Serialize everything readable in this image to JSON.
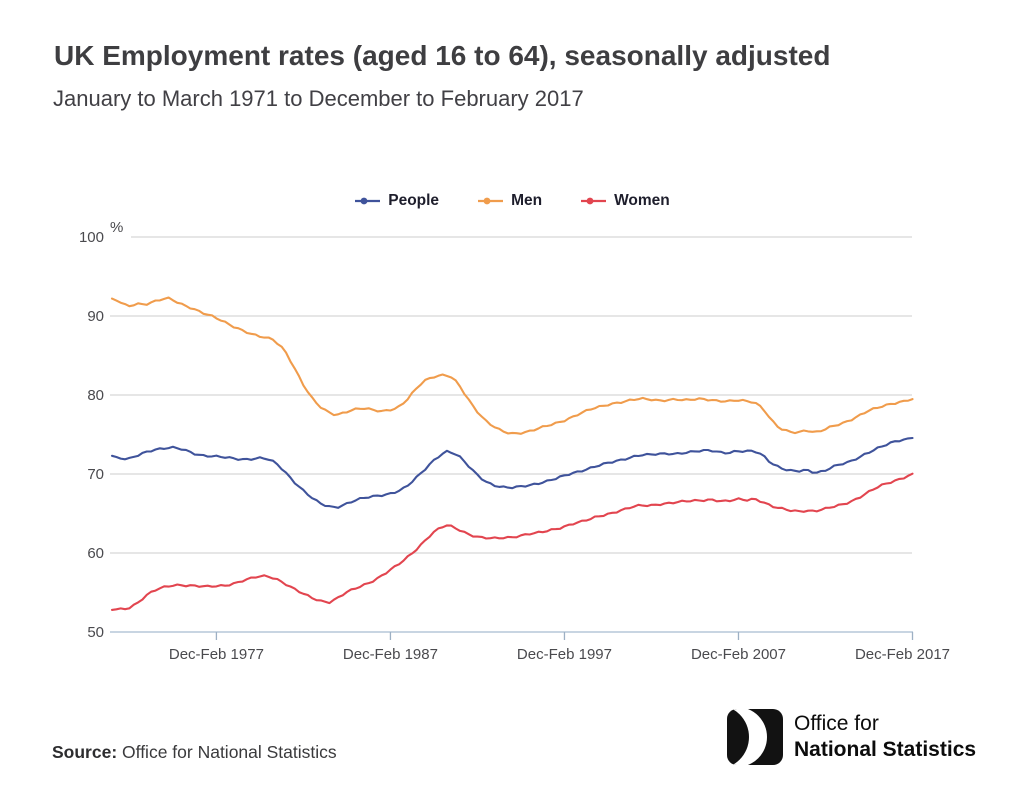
{
  "header": {
    "title": "UK Employment rates (aged 16 to 64), seasonally adjusted",
    "subtitle": "January to March 1971 to December to February 2017"
  },
  "footer": {
    "source_label": "Source:",
    "source_value": "Office for National Statistics",
    "logo_line1": "Office for",
    "logo_line2": "National Statistics"
  },
  "chart_data": {
    "type": "line",
    "unit_label": "%",
    "y_range": [
      50,
      100
    ],
    "x_range": [
      1971.1,
      2017.1
    ],
    "grid": true,
    "legend_position": "top-center",
    "y_ticks": [
      100,
      90,
      80,
      70,
      60,
      50
    ],
    "x_ticks": [
      {
        "year": 1977.1,
        "label": "Dec-Feb 1977"
      },
      {
        "year": 1987.1,
        "label": "Dec-Feb 1987"
      },
      {
        "year": 1997.1,
        "label": "Dec-Feb 1997"
      },
      {
        "year": 2007.1,
        "label": "Dec-Feb 2007"
      },
      {
        "year": 2017.1,
        "label": "Dec-Feb 2017"
      }
    ],
    "series": [
      {
        "name": "People",
        "color": "#3f539b",
        "points": [
          [
            1971.1,
            72.3
          ],
          [
            1971.5,
            72.0
          ],
          [
            1972,
            71.8
          ],
          [
            1972.5,
            72.3
          ],
          [
            1973,
            72.8
          ],
          [
            1973.5,
            73.1
          ],
          [
            1974,
            73.2
          ],
          [
            1974.5,
            73.3
          ],
          [
            1975,
            73.2
          ],
          [
            1975.5,
            72.9
          ],
          [
            1976,
            72.5
          ],
          [
            1976.5,
            72.3
          ],
          [
            1977,
            72.2
          ],
          [
            1977.5,
            72.1
          ],
          [
            1978,
            72.0
          ],
          [
            1978.5,
            71.9
          ],
          [
            1979,
            71.9
          ],
          [
            1979.5,
            72.0
          ],
          [
            1980,
            71.9
          ],
          [
            1980.5,
            71.4
          ],
          [
            1981,
            70.4
          ],
          [
            1981.5,
            69.2
          ],
          [
            1982,
            68.1
          ],
          [
            1982.5,
            67.1
          ],
          [
            1983,
            66.3
          ],
          [
            1983.5,
            65.9
          ],
          [
            1984,
            65.8
          ],
          [
            1984.5,
            66.2
          ],
          [
            1985,
            66.6
          ],
          [
            1985.5,
            66.9
          ],
          [
            1986,
            67.1
          ],
          [
            1986.5,
            67.3
          ],
          [
            1987,
            67.5
          ],
          [
            1987.5,
            67.8
          ],
          [
            1988,
            68.3
          ],
          [
            1988.5,
            69.3
          ],
          [
            1989,
            70.4
          ],
          [
            1989.5,
            71.6
          ],
          [
            1990,
            72.5
          ],
          [
            1990.4,
            72.9
          ],
          [
            1991,
            72.3
          ],
          [
            1991.5,
            71.2
          ],
          [
            1992,
            70.1
          ],
          [
            1992.5,
            69.2
          ],
          [
            1993,
            68.6
          ],
          [
            1993.5,
            68.3
          ],
          [
            1994,
            68.2
          ],
          [
            1994.5,
            68.4
          ],
          [
            1995,
            68.6
          ],
          [
            1995.5,
            68.8
          ],
          [
            1996,
            69.0
          ],
          [
            1996.5,
            69.3
          ],
          [
            1997,
            69.7
          ],
          [
            1997.5,
            70.1
          ],
          [
            1998,
            70.4
          ],
          [
            1998.5,
            70.7
          ],
          [
            1999,
            71.0
          ],
          [
            1999.5,
            71.3
          ],
          [
            2000,
            71.6
          ],
          [
            2000.5,
            71.9
          ],
          [
            2001,
            72.2
          ],
          [
            2001.5,
            72.4
          ],
          [
            2002,
            72.4
          ],
          [
            2002.5,
            72.5
          ],
          [
            2003,
            72.6
          ],
          [
            2003.5,
            72.6
          ],
          [
            2004,
            72.7
          ],
          [
            2004.5,
            72.8
          ],
          [
            2005,
            72.9
          ],
          [
            2005.5,
            73.0
          ],
          [
            2006,
            72.8
          ],
          [
            2006.5,
            72.7
          ],
          [
            2007,
            72.9
          ],
          [
            2007.5,
            72.8
          ],
          [
            2008,
            72.9
          ],
          [
            2008.5,
            72.4
          ],
          [
            2009,
            71.4
          ],
          [
            2009.5,
            70.8
          ],
          [
            2010,
            70.4
          ],
          [
            2010.5,
            70.3
          ],
          [
            2011,
            70.5
          ],
          [
            2011.5,
            70.2
          ],
          [
            2012,
            70.4
          ],
          [
            2012.5,
            70.9
          ],
          [
            2013,
            71.2
          ],
          [
            2013.5,
            71.5
          ],
          [
            2014,
            72.1
          ],
          [
            2014.5,
            72.7
          ],
          [
            2015,
            73.2
          ],
          [
            2015.5,
            73.6
          ],
          [
            2016,
            74.0
          ],
          [
            2016.5,
            74.3
          ],
          [
            2017.1,
            74.6
          ]
        ]
      },
      {
        "name": "Men",
        "color": "#f09c4c",
        "points": [
          [
            1971.1,
            92.2
          ],
          [
            1971.5,
            91.8
          ],
          [
            1972,
            91.2
          ],
          [
            1972.5,
            91.6
          ],
          [
            1973,
            91.5
          ],
          [
            1973.5,
            91.8
          ],
          [
            1974,
            92.1
          ],
          [
            1974.4,
            92.2
          ],
          [
            1975,
            91.6
          ],
          [
            1975.5,
            91.2
          ],
          [
            1976,
            90.7
          ],
          [
            1976.5,
            90.2
          ],
          [
            1977,
            89.8
          ],
          [
            1977.5,
            89.3
          ],
          [
            1978,
            88.8
          ],
          [
            1978.5,
            88.3
          ],
          [
            1979,
            87.8
          ],
          [
            1979.5,
            87.4
          ],
          [
            1980,
            87.2
          ],
          [
            1980.4,
            87.0
          ],
          [
            1981,
            85.8
          ],
          [
            1981.5,
            83.8
          ],
          [
            1982,
            81.6
          ],
          [
            1982.5,
            79.8
          ],
          [
            1983,
            78.6
          ],
          [
            1983.5,
            77.9
          ],
          [
            1984,
            77.5
          ],
          [
            1984.5,
            77.8
          ],
          [
            1985,
            78.1
          ],
          [
            1985.5,
            78.3
          ],
          [
            1986,
            78.2
          ],
          [
            1986.6,
            78.0
          ],
          [
            1987,
            78.1
          ],
          [
            1987.5,
            78.3
          ],
          [
            1988,
            79.2
          ],
          [
            1988.5,
            80.6
          ],
          [
            1989,
            81.8
          ],
          [
            1989.5,
            82.3
          ],
          [
            1990,
            82.5
          ],
          [
            1990.5,
            82.4
          ],
          [
            1991,
            81.4
          ],
          [
            1991.5,
            79.7
          ],
          [
            1992,
            78.2
          ],
          [
            1992.5,
            76.9
          ],
          [
            1993,
            76.0
          ],
          [
            1993.5,
            75.4
          ],
          [
            1994,
            75.1
          ],
          [
            1994.5,
            75.2
          ],
          [
            1995,
            75.4
          ],
          [
            1995.5,
            75.7
          ],
          [
            1996,
            76.0
          ],
          [
            1996.5,
            76.3
          ],
          [
            1997,
            76.7
          ],
          [
            1997.5,
            77.2
          ],
          [
            1998,
            77.7
          ],
          [
            1998.5,
            78.1
          ],
          [
            1999,
            78.4
          ],
          [
            1999.5,
            78.7
          ],
          [
            2000,
            79.0
          ],
          [
            2000.5,
            79.2
          ],
          [
            2001,
            79.4
          ],
          [
            2001.5,
            79.5
          ],
          [
            2002,
            79.4
          ],
          [
            2002.5,
            79.3
          ],
          [
            2003,
            79.4
          ],
          [
            2003.5,
            79.5
          ],
          [
            2004,
            79.3
          ],
          [
            2004.5,
            79.4
          ],
          [
            2005,
            79.5
          ],
          [
            2005.5,
            79.4
          ],
          [
            2006,
            79.3
          ],
          [
            2006.5,
            79.2
          ],
          [
            2007,
            79.3
          ],
          [
            2007.5,
            79.2
          ],
          [
            2008,
            79.1
          ],
          [
            2008.5,
            78.4
          ],
          [
            2009,
            76.8
          ],
          [
            2009.5,
            75.7
          ],
          [
            2010,
            75.3
          ],
          [
            2010.5,
            75.2
          ],
          [
            2011,
            75.6
          ],
          [
            2011.5,
            75.3
          ],
          [
            2012,
            75.6
          ],
          [
            2012.5,
            76.0
          ],
          [
            2013,
            76.3
          ],
          [
            2013.5,
            76.8
          ],
          [
            2014,
            77.4
          ],
          [
            2014.5,
            78.0
          ],
          [
            2015,
            78.3
          ],
          [
            2015.5,
            78.6
          ],
          [
            2016,
            78.9
          ],
          [
            2016.5,
            79.2
          ],
          [
            2017.1,
            79.5
          ]
        ]
      },
      {
        "name": "Women",
        "color": "#e2454f",
        "points": [
          [
            1971.1,
            52.8
          ],
          [
            1971.5,
            52.9
          ],
          [
            1972,
            53.0
          ],
          [
            1972.5,
            53.6
          ],
          [
            1973,
            54.5
          ],
          [
            1973.5,
            55.2
          ],
          [
            1974,
            55.6
          ],
          [
            1974.5,
            55.9
          ],
          [
            1975,
            56.0
          ],
          [
            1975.5,
            55.9
          ],
          [
            1976,
            55.8
          ],
          [
            1976.5,
            55.7
          ],
          [
            1977,
            55.8
          ],
          [
            1977.5,
            55.9
          ],
          [
            1978,
            56.1
          ],
          [
            1978.5,
            56.4
          ],
          [
            1979,
            56.7
          ],
          [
            1979.5,
            57.0
          ],
          [
            1980,
            57.1
          ],
          [
            1980.5,
            56.8
          ],
          [
            1981,
            56.2
          ],
          [
            1981.5,
            55.5
          ],
          [
            1982,
            54.9
          ],
          [
            1982.5,
            54.4
          ],
          [
            1983,
            54.0
          ],
          [
            1983.6,
            53.8
          ],
          [
            1984,
            54.2
          ],
          [
            1984.5,
            54.9
          ],
          [
            1985,
            55.4
          ],
          [
            1985.5,
            55.9
          ],
          [
            1986,
            56.4
          ],
          [
            1986.5,
            57.0
          ],
          [
            1987,
            57.7
          ],
          [
            1987.5,
            58.4
          ],
          [
            1988,
            59.3
          ],
          [
            1988.5,
            60.3
          ],
          [
            1989,
            61.4
          ],
          [
            1989.5,
            62.5
          ],
          [
            1990,
            63.2
          ],
          [
            1990.4,
            63.5
          ],
          [
            1991,
            63.0
          ],
          [
            1991.5,
            62.5
          ],
          [
            1992,
            62.1
          ],
          [
            1992.5,
            61.9
          ],
          [
            1993,
            61.8
          ],
          [
            1993.5,
            61.9
          ],
          [
            1994,
            62.0
          ],
          [
            1994.5,
            62.2
          ],
          [
            1995,
            62.4
          ],
          [
            1995.5,
            62.5
          ],
          [
            1996,
            62.7
          ],
          [
            1996.5,
            63.0
          ],
          [
            1997,
            63.3
          ],
          [
            1997.5,
            63.7
          ],
          [
            1998,
            63.9
          ],
          [
            1998.5,
            64.2
          ],
          [
            1999,
            64.6
          ],
          [
            1999.5,
            64.9
          ],
          [
            2000,
            65.2
          ],
          [
            2000.5,
            65.5
          ],
          [
            2001,
            65.8
          ],
          [
            2001.5,
            66.0
          ],
          [
            2002,
            66.0
          ],
          [
            2002.5,
            66.2
          ],
          [
            2003,
            66.3
          ],
          [
            2003.5,
            66.4
          ],
          [
            2004,
            66.5
          ],
          [
            2004.5,
            66.6
          ],
          [
            2005,
            66.7
          ],
          [
            2005.5,
            66.8
          ],
          [
            2006,
            66.6
          ],
          [
            2006.5,
            66.5
          ],
          [
            2007,
            66.8
          ],
          [
            2007.5,
            66.7
          ],
          [
            2008,
            66.9
          ],
          [
            2008.5,
            66.5
          ],
          [
            2009,
            65.9
          ],
          [
            2009.5,
            65.6
          ],
          [
            2010,
            65.4
          ],
          [
            2010.5,
            65.3
          ],
          [
            2011,
            65.4
          ],
          [
            2011.5,
            65.3
          ],
          [
            2012,
            65.5
          ],
          [
            2012.5,
            65.8
          ],
          [
            2013,
            66.1
          ],
          [
            2013.5,
            66.5
          ],
          [
            2014,
            67.0
          ],
          [
            2014.5,
            67.6
          ],
          [
            2015,
            68.2
          ],
          [
            2015.5,
            68.7
          ],
          [
            2016,
            69.1
          ],
          [
            2016.5,
            69.5
          ],
          [
            2017.1,
            70.0
          ]
        ]
      }
    ]
  }
}
